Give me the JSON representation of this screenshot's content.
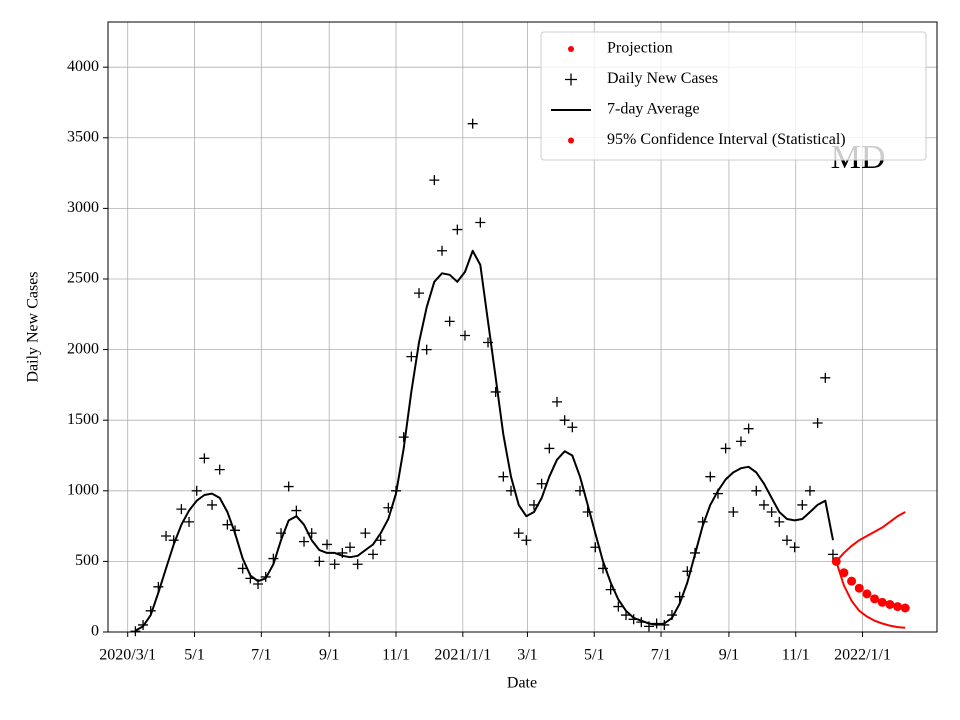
{
  "chart_data": {
    "type": "scatter",
    "xlabel": "Date",
    "ylabel": "Daily New Cases",
    "annotation": "MD",
    "grid": true,
    "legend": "upper right",
    "xlim": [
      "2020-02-12",
      "2022-03-10"
    ],
    "ylim": [
      0,
      4320
    ],
    "yticks": [
      0,
      500,
      1000,
      1500,
      2000,
      2500,
      3000,
      3500,
      4000
    ],
    "xticks": [
      {
        "value": "2020-03-01",
        "label": "2020/3/1"
      },
      {
        "value": "2020-05-01",
        "label": "5/1"
      },
      {
        "value": "2020-07-01",
        "label": "7/1"
      },
      {
        "value": "2020-09-01",
        "label": "9/1"
      },
      {
        "value": "2020-11-01",
        "label": "11/1"
      },
      {
        "value": "2021-01-01",
        "label": "2021/1/1"
      },
      {
        "value": "2021-03-01",
        "label": "3/1"
      },
      {
        "value": "2021-05-01",
        "label": "5/1"
      },
      {
        "value": "2021-07-01",
        "label": "7/1"
      },
      {
        "value": "2021-09-01",
        "label": "9/1"
      },
      {
        "value": "2021-11-01",
        "label": "11/1"
      },
      {
        "value": "2022-01-01",
        "label": "2022/1/1"
      }
    ],
    "series": [
      {
        "name": "Projection",
        "color": "#ff0000",
        "marker": "dot",
        "x": [
          "2021-12-08",
          "2021-12-15",
          "2021-12-22",
          "2021-12-29",
          "2022-01-05",
          "2022-01-12",
          "2022-01-19",
          "2022-01-26",
          "2022-02-02",
          "2022-02-09"
        ],
        "values": [
          500,
          420,
          360,
          310,
          270,
          235,
          210,
          195,
          180,
          170
        ]
      },
      {
        "name": "Daily New Cases",
        "color": "#000000",
        "marker": "plus",
        "x": [
          "2020-03-08",
          "2020-03-15",
          "2020-03-22",
          "2020-03-29",
          "2020-04-05",
          "2020-04-12",
          "2020-04-19",
          "2020-04-26",
          "2020-05-03",
          "2020-05-10",
          "2020-05-17",
          "2020-05-24",
          "2020-05-31",
          "2020-06-07",
          "2020-06-14",
          "2020-06-21",
          "2020-06-28",
          "2020-07-05",
          "2020-07-12",
          "2020-07-19",
          "2020-07-26",
          "2020-08-02",
          "2020-08-09",
          "2020-08-16",
          "2020-08-23",
          "2020-08-30",
          "2020-09-06",
          "2020-09-13",
          "2020-09-20",
          "2020-09-27",
          "2020-10-04",
          "2020-10-11",
          "2020-10-18",
          "2020-10-25",
          "2020-11-01",
          "2020-11-08",
          "2020-11-15",
          "2020-11-22",
          "2020-11-29",
          "2020-12-06",
          "2020-12-13",
          "2020-12-20",
          "2020-12-27",
          "2021-01-03",
          "2021-01-10",
          "2021-01-17",
          "2021-01-24",
          "2021-01-31",
          "2021-02-07",
          "2021-02-14",
          "2021-02-21",
          "2021-02-28",
          "2021-03-07",
          "2021-03-14",
          "2021-03-21",
          "2021-03-28",
          "2021-04-04",
          "2021-04-11",
          "2021-04-18",
          "2021-04-25",
          "2021-05-02",
          "2021-05-09",
          "2021-05-16",
          "2021-05-23",
          "2021-05-30",
          "2021-06-06",
          "2021-06-13",
          "2021-06-20",
          "2021-06-27",
          "2021-07-04",
          "2021-07-11",
          "2021-07-18",
          "2021-07-25",
          "2021-08-01",
          "2021-08-08",
          "2021-08-15",
          "2021-08-22",
          "2021-08-29",
          "2021-09-05",
          "2021-09-12",
          "2021-09-19",
          "2021-09-26",
          "2021-10-03",
          "2021-10-10",
          "2021-10-17",
          "2021-10-24",
          "2021-10-31",
          "2021-11-07",
          "2021-11-14",
          "2021-11-21",
          "2021-11-28",
          "2021-12-05"
        ],
        "values": [
          5,
          50,
          150,
          320,
          680,
          650,
          870,
          780,
          1000,
          1230,
          900,
          1150,
          760,
          720,
          450,
          380,
          340,
          390,
          520,
          700,
          1030,
          860,
          640,
          700,
          500,
          620,
          480,
          560,
          600,
          480,
          700,
          550,
          650,
          880,
          1000,
          1380,
          1950,
          2400,
          2000,
          3200,
          2700,
          2200,
          2850,
          2100,
          3600,
          2900,
          2050,
          1700,
          1100,
          1000,
          700,
          650,
          900,
          1050,
          1300,
          1630,
          1500,
          1450,
          1000,
          850,
          600,
          450,
          300,
          180,
          120,
          90,
          70,
          40,
          60,
          50,
          120,
          250,
          430,
          560,
          780,
          1100,
          980,
          1300,
          850,
          1350,
          1440,
          1000,
          900,
          850,
          780,
          650,
          600,
          900,
          1000,
          1480,
          1800,
          550
        ]
      },
      {
        "name": "7-day Average",
        "color": "#000000",
        "marker": "line",
        "x": [
          "2020-03-08",
          "2020-03-15",
          "2020-03-22",
          "2020-03-29",
          "2020-04-05",
          "2020-04-12",
          "2020-04-19",
          "2020-04-26",
          "2020-05-03",
          "2020-05-10",
          "2020-05-17",
          "2020-05-24",
          "2020-05-31",
          "2020-06-07",
          "2020-06-14",
          "2020-06-21",
          "2020-06-28",
          "2020-07-05",
          "2020-07-12",
          "2020-07-19",
          "2020-07-26",
          "2020-08-02",
          "2020-08-09",
          "2020-08-16",
          "2020-08-23",
          "2020-08-30",
          "2020-09-06",
          "2020-09-13",
          "2020-09-20",
          "2020-09-27",
          "2020-10-04",
          "2020-10-11",
          "2020-10-18",
          "2020-10-25",
          "2020-11-01",
          "2020-11-08",
          "2020-11-15",
          "2020-11-22",
          "2020-11-29",
          "2020-12-06",
          "2020-12-13",
          "2020-12-20",
          "2020-12-27",
          "2021-01-03",
          "2021-01-10",
          "2021-01-17",
          "2021-01-24",
          "2021-01-31",
          "2021-02-07",
          "2021-02-14",
          "2021-02-21",
          "2021-02-28",
          "2021-03-07",
          "2021-03-14",
          "2021-03-21",
          "2021-03-28",
          "2021-04-04",
          "2021-04-11",
          "2021-04-18",
          "2021-04-25",
          "2021-05-02",
          "2021-05-09",
          "2021-05-16",
          "2021-05-23",
          "2021-05-30",
          "2021-06-06",
          "2021-06-13",
          "2021-06-20",
          "2021-06-27",
          "2021-07-04",
          "2021-07-11",
          "2021-07-18",
          "2021-07-25",
          "2021-08-01",
          "2021-08-08",
          "2021-08-15",
          "2021-08-22",
          "2021-08-29",
          "2021-09-05",
          "2021-09-12",
          "2021-09-19",
          "2021-09-26",
          "2021-10-03",
          "2021-10-10",
          "2021-10-17",
          "2021-10-24",
          "2021-10-31",
          "2021-11-07",
          "2021-11-14",
          "2021-11-21",
          "2021-11-28",
          "2021-12-05"
        ],
        "values": [
          10,
          40,
          120,
          280,
          450,
          620,
          760,
          860,
          930,
          970,
          980,
          950,
          850,
          700,
          520,
          400,
          360,
          380,
          480,
          650,
          790,
          820,
          760,
          650,
          580,
          560,
          560,
          540,
          530,
          540,
          580,
          620,
          700,
          800,
          980,
          1300,
          1700,
          2050,
          2300,
          2480,
          2540,
          2530,
          2480,
          2550,
          2700,
          2600,
          2200,
          1800,
          1400,
          1100,
          900,
          820,
          850,
          950,
          1100,
          1220,
          1280,
          1250,
          1100,
          900,
          700,
          500,
          350,
          230,
          150,
          100,
          80,
          60,
          50,
          60,
          100,
          200,
          350,
          550,
          750,
          900,
          1000,
          1080,
          1130,
          1160,
          1170,
          1130,
          1050,
          950,
          850,
          800,
          790,
          800,
          850,
          900,
          930,
          650
        ]
      },
      {
        "name": "95% Confidence Interval (Statistical)",
        "color": "#ff0000",
        "marker": "band",
        "x": [
          "2021-12-08",
          "2021-12-15",
          "2021-12-22",
          "2021-12-29",
          "2022-01-05",
          "2022-01-12",
          "2022-01-19",
          "2022-01-26",
          "2022-02-02",
          "2022-02-09"
        ],
        "lower": [
          500,
          330,
          220,
          150,
          110,
          80,
          60,
          45,
          35,
          30
        ],
        "upper": [
          500,
          560,
          610,
          650,
          680,
          710,
          740,
          780,
          820,
          850
        ]
      }
    ]
  }
}
